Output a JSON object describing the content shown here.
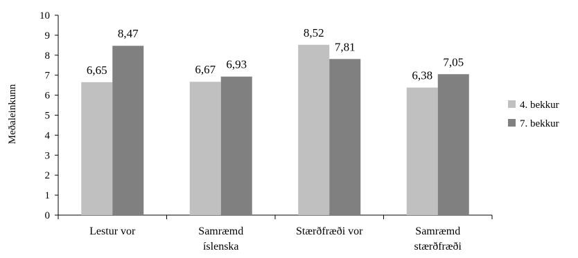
{
  "chart_data": {
    "type": "bar",
    "title": "",
    "xlabel": "",
    "ylabel": "Meðaleinkunn",
    "ylim": [
      0,
      10
    ],
    "yticks": [
      "0",
      "1",
      "2",
      "3",
      "4",
      "5",
      "6",
      "7",
      "8",
      "9",
      "10"
    ],
    "grid": false,
    "legend_position": "right",
    "categories": [
      [
        "Lestur vor"
      ],
      [
        "Samræmd",
        "íslenska"
      ],
      [
        "Stærðfræði vor"
      ],
      [
        "Samræmd",
        "stærðfræði"
      ]
    ],
    "series": [
      {
        "name": "4. bekkur",
        "color": "#c0c0c0",
        "values": [
          6.65,
          6.67,
          8.52,
          6.38
        ],
        "labels": [
          "6,65",
          "6,67",
          "8,52",
          "6,38"
        ]
      },
      {
        "name": "7. bekkur",
        "color": "#808080",
        "values": [
          8.47,
          6.93,
          7.81,
          7.05
        ],
        "labels": [
          "8,47",
          "6,93",
          "7,81",
          "7,05"
        ]
      }
    ]
  }
}
